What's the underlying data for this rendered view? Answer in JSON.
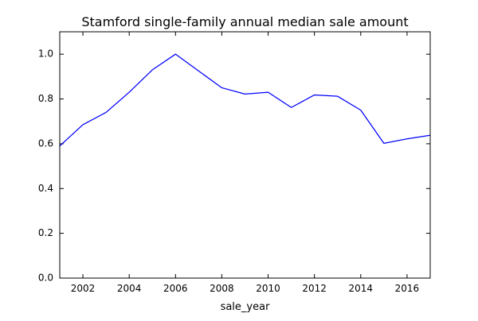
{
  "chart_data": {
    "type": "line",
    "title": "Stamford single-family annual median sale amount",
    "xlabel": "sale_year",
    "ylabel": "",
    "xlim": [
      2001,
      2017
    ],
    "ylim": [
      0.0,
      1.1
    ],
    "xticks": [
      2002,
      2004,
      2006,
      2008,
      2010,
      2012,
      2014,
      2016
    ],
    "yticks": [
      0.0,
      0.2,
      0.4,
      0.6,
      0.8,
      1.0
    ],
    "xtick_labels": [
      "2002",
      "2004",
      "2006",
      "2008",
      "2010",
      "2012",
      "2014",
      "2016"
    ],
    "ytick_labels": [
      "0.0",
      "0.2",
      "0.4",
      "0.6",
      "0.8",
      "1.0"
    ],
    "grid": false,
    "legend": "none",
    "series": [
      {
        "color": "#0000ff",
        "x": [
          2001,
          2002,
          2003,
          2004,
          2005,
          2006,
          2007,
          2008,
          2009,
          2010,
          2011,
          2012,
          2013,
          2014,
          2015,
          2016,
          2017
        ],
        "y": [
          0.59,
          0.685,
          0.74,
          0.83,
          0.93,
          1.0,
          0.925,
          0.85,
          0.822,
          0.83,
          0.762,
          0.818,
          0.812,
          0.75,
          0.602,
          0.622,
          0.638
        ]
      }
    ]
  }
}
